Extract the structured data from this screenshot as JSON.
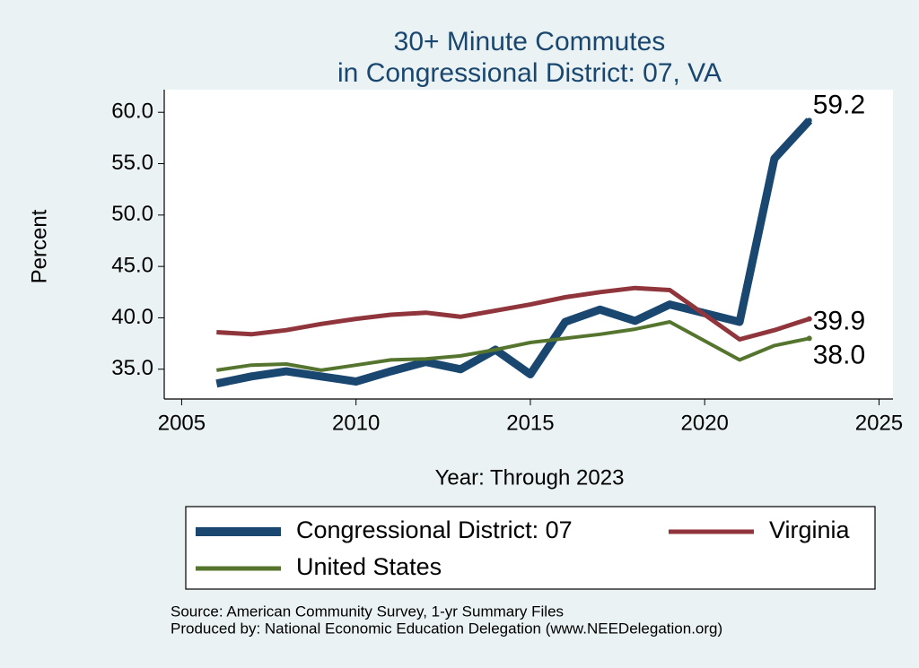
{
  "chart_data": {
    "type": "line",
    "title": [
      "30+ Minute Commutes",
      "in Congressional District:  07, VA"
    ],
    "y_label": "Percent",
    "x_label": "Year: Through 2023",
    "x": [
      2006,
      2007,
      2008,
      2009,
      2010,
      2011,
      2012,
      2013,
      2014,
      2015,
      2016,
      2017,
      2018,
      2019,
      2021,
      2022,
      2023
    ],
    "series": [
      {
        "name": "Congressional District:  07",
        "color": "#1a476f",
        "values": [
          33.6,
          34.3,
          34.8,
          34.3,
          33.8,
          34.8,
          35.7,
          35.0,
          36.9,
          34.5,
          39.6,
          40.8,
          39.7,
          41.3,
          39.6,
          55.5,
          59.2
        ],
        "value_labels": [
          null,
          null,
          null,
          null,
          null,
          null,
          null,
          null,
          null,
          null,
          null,
          null,
          null,
          null,
          null,
          null,
          "59.2"
        ]
      },
      {
        "name": "Virginia",
        "color": "#90353b",
        "values": [
          38.6,
          38.4,
          38.8,
          39.4,
          39.9,
          40.3,
          40.5,
          40.1,
          40.7,
          41.3,
          42.0,
          42.5,
          42.9,
          42.7,
          37.9,
          38.8,
          39.9
        ],
        "value_labels": [
          null,
          null,
          null,
          null,
          null,
          null,
          null,
          null,
          null,
          null,
          null,
          null,
          null,
          null,
          null,
          null,
          "39.9"
        ]
      },
      {
        "name": "United States",
        "color": "#55752f",
        "values": [
          34.9,
          35.4,
          35.5,
          34.9,
          35.4,
          35.9,
          36.0,
          36.3,
          36.9,
          37.6,
          38.0,
          38.4,
          38.9,
          39.6,
          35.9,
          37.3,
          38.0
        ],
        "value_labels": [
          null,
          null,
          null,
          null,
          null,
          null,
          null,
          null,
          null,
          null,
          null,
          null,
          null,
          null,
          null,
          null,
          "38.0"
        ]
      }
    ],
    "xlim": [
      2004.5,
      2025.4
    ],
    "xticks": [
      2005,
      2010,
      2015,
      2020,
      2025
    ],
    "ylim": [
      32.1,
      62.2
    ],
    "yticks": [
      {
        "value": 35,
        "label": "35.0"
      },
      {
        "value": 40,
        "label": "40.0"
      },
      {
        "value": 45,
        "label": "45.0"
      },
      {
        "value": 50,
        "label": "50.0"
      },
      {
        "value": 55,
        "label": "55.0"
      },
      {
        "value": 60,
        "label": "60.0"
      }
    ],
    "grid": false,
    "notes": [
      "Source: American Community Survey, 1-yr Summary Files",
      "Produced by: National Economic Education Delegation (www.NEEDelegation.org)"
    ]
  }
}
